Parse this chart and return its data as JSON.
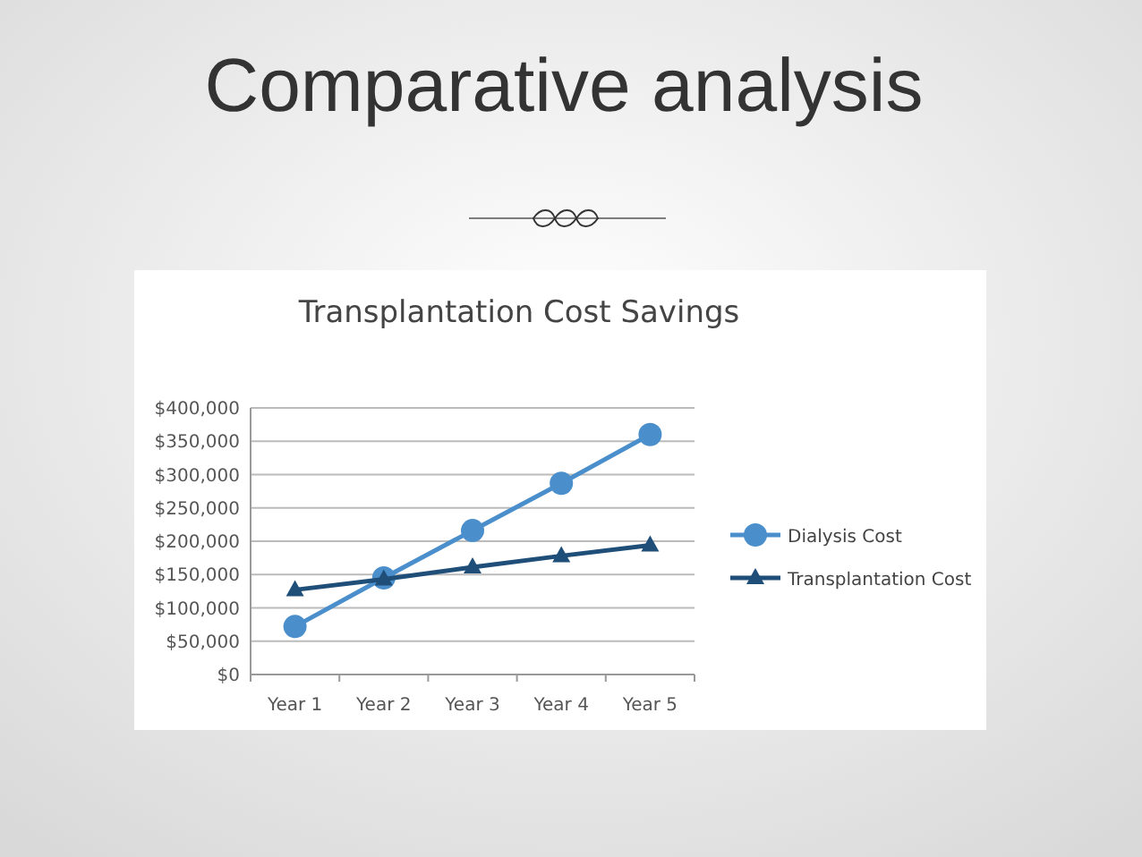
{
  "chart_data": {
    "type": "line",
    "title": "Comparative analysis",
    "subtitle": "Transplantation Cost Savings",
    "categories": [
      "Year 1",
      "Year 2",
      "Year 3",
      "Year 4",
      "Year 5"
    ],
    "series": [
      {
        "name": "Dialysis Cost",
        "color": "#4a8fcc",
        "marker": "circle",
        "values": [
          72000,
          145000,
          216000,
          287000,
          360000
        ]
      },
      {
        "name": "Transplantation Cost",
        "color": "#1f4e79",
        "marker": "triangle",
        "values": [
          127000,
          143000,
          161000,
          178000,
          194000
        ]
      }
    ],
    "ylim": [
      0,
      400000
    ],
    "yticks": [
      {
        "value": 0,
        "label": "$0"
      },
      {
        "value": 50000,
        "label": "$50,000"
      },
      {
        "value": 100000,
        "label": "$100,000"
      },
      {
        "value": 150000,
        "label": "$150,000"
      },
      {
        "value": 200000,
        "label": "$200,000"
      },
      {
        "value": 250000,
        "label": "$250,000"
      },
      {
        "value": 300000,
        "label": "$300,000"
      },
      {
        "value": 350000,
        "label": "$350,000"
      },
      {
        "value": 400000,
        "label": "$400,000"
      }
    ],
    "grid": "y",
    "legend": "right"
  }
}
